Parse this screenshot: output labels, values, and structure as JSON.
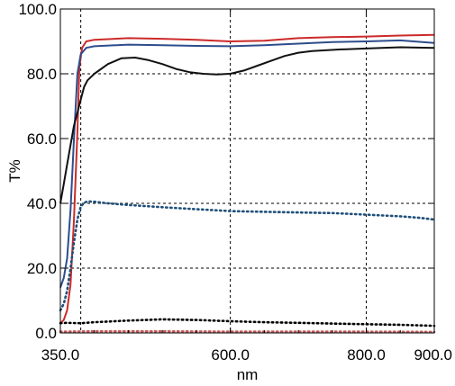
{
  "chart_data": {
    "type": "line",
    "title": "",
    "xlabel": "nm",
    "ylabel": "T%",
    "xlim": [
      350,
      900
    ],
    "ylim": [
      0,
      100
    ],
    "x_ticks": [
      {
        "value": 350,
        "label": "350.0"
      },
      {
        "value": 600,
        "label": "600.0"
      },
      {
        "value": 800,
        "label": "800.0"
      },
      {
        "value": 900,
        "label": "900.0"
      }
    ],
    "x_gridlines": [
      380,
      600,
      800
    ],
    "y_ticks": [
      {
        "value": 0,
        "label": "0.0"
      },
      {
        "value": 20,
        "label": "20.0"
      },
      {
        "value": 40,
        "label": "40.0"
      },
      {
        "value": 60,
        "label": "60.0"
      },
      {
        "value": 80,
        "label": "80.0"
      },
      {
        "value": 100,
        "label": "100.0"
      }
    ],
    "grid": true,
    "legend": "none",
    "series": [
      {
        "color": "#cc2a2a",
        "style": "solid",
        "points": [
          [
            350,
            3
          ],
          [
            355,
            4
          ],
          [
            360,
            7
          ],
          [
            365,
            15
          ],
          [
            370,
            35
          ],
          [
            375,
            62
          ],
          [
            378,
            82
          ],
          [
            382,
            88
          ],
          [
            388,
            90
          ],
          [
            400,
            90.5
          ],
          [
            450,
            91
          ],
          [
            500,
            90.8
          ],
          [
            550,
            90.5
          ],
          [
            600,
            90
          ],
          [
            650,
            90.2
          ],
          [
            700,
            91
          ],
          [
            750,
            91.3
          ],
          [
            800,
            91.5
          ],
          [
            850,
            91.8
          ],
          [
            900,
            92
          ]
        ]
      },
      {
        "color": "#2e4d8c",
        "style": "solid",
        "points": [
          [
            350,
            14
          ],
          [
            355,
            17
          ],
          [
            360,
            23
          ],
          [
            365,
            38
          ],
          [
            370,
            60
          ],
          [
            375,
            80
          ],
          [
            380,
            86
          ],
          [
            388,
            88
          ],
          [
            400,
            88.5
          ],
          [
            450,
            89
          ],
          [
            500,
            88.8
          ],
          [
            550,
            88.6
          ],
          [
            600,
            88.5
          ],
          [
            650,
            88.8
          ],
          [
            700,
            89.3
          ],
          [
            750,
            89.8
          ],
          [
            800,
            90
          ],
          [
            850,
            90.3
          ],
          [
            900,
            89.5
          ]
        ]
      },
      {
        "color": "#111111",
        "style": "solid",
        "points": [
          [
            350,
            40
          ],
          [
            355,
            46
          ],
          [
            360,
            52
          ],
          [
            365,
            58
          ],
          [
            370,
            64
          ],
          [
            375,
            68
          ],
          [
            380,
            72
          ],
          [
            385,
            76
          ],
          [
            390,
            78
          ],
          [
            400,
            80
          ],
          [
            420,
            83
          ],
          [
            440,
            84.8
          ],
          [
            460,
            85
          ],
          [
            480,
            84.2
          ],
          [
            500,
            83
          ],
          [
            520,
            81.5
          ],
          [
            540,
            80.5
          ],
          [
            560,
            80
          ],
          [
            580,
            79.8
          ],
          [
            600,
            80
          ],
          [
            620,
            81
          ],
          [
            640,
            82.5
          ],
          [
            660,
            84
          ],
          [
            680,
            85.5
          ],
          [
            700,
            86.5
          ],
          [
            720,
            87
          ],
          [
            760,
            87.5
          ],
          [
            800,
            87.8
          ],
          [
            850,
            88.2
          ],
          [
            900,
            88
          ]
        ]
      },
      {
        "color": "#1f4f7a",
        "style": "dotted",
        "points": [
          [
            350,
            7
          ],
          [
            355,
            9
          ],
          [
            360,
            13
          ],
          [
            365,
            20
          ],
          [
            370,
            28
          ],
          [
            375,
            35
          ],
          [
            380,
            39
          ],
          [
            385,
            40.2
          ],
          [
            390,
            40.6
          ],
          [
            400,
            40.5
          ],
          [
            420,
            40
          ],
          [
            450,
            39.5
          ],
          [
            500,
            38.8
          ],
          [
            550,
            38.2
          ],
          [
            600,
            37.6
          ],
          [
            650,
            37.4
          ],
          [
            700,
            37.2
          ],
          [
            750,
            37
          ],
          [
            800,
            36.5
          ],
          [
            850,
            36
          ],
          [
            880,
            35.5
          ],
          [
            900,
            35
          ]
        ]
      },
      {
        "color": "#000000",
        "style": "dotted",
        "points": [
          [
            350,
            3
          ],
          [
            360,
            3.1
          ],
          [
            380,
            3
          ],
          [
            400,
            3.3
          ],
          [
            450,
            3.8
          ],
          [
            500,
            4.2
          ],
          [
            550,
            4
          ],
          [
            600,
            3.6
          ],
          [
            650,
            3.3
          ],
          [
            700,
            3.1
          ],
          [
            750,
            2.9
          ],
          [
            800,
            2.7
          ],
          [
            850,
            2.5
          ],
          [
            900,
            2.2
          ]
        ]
      },
      {
        "color": "#c05a5a",
        "style": "dotted",
        "points": [
          [
            350,
            0.4
          ],
          [
            400,
            0.5
          ],
          [
            500,
            0.5
          ],
          [
            600,
            0.4
          ],
          [
            700,
            0.4
          ],
          [
            800,
            0.4
          ],
          [
            900,
            0.3
          ]
        ]
      }
    ]
  }
}
